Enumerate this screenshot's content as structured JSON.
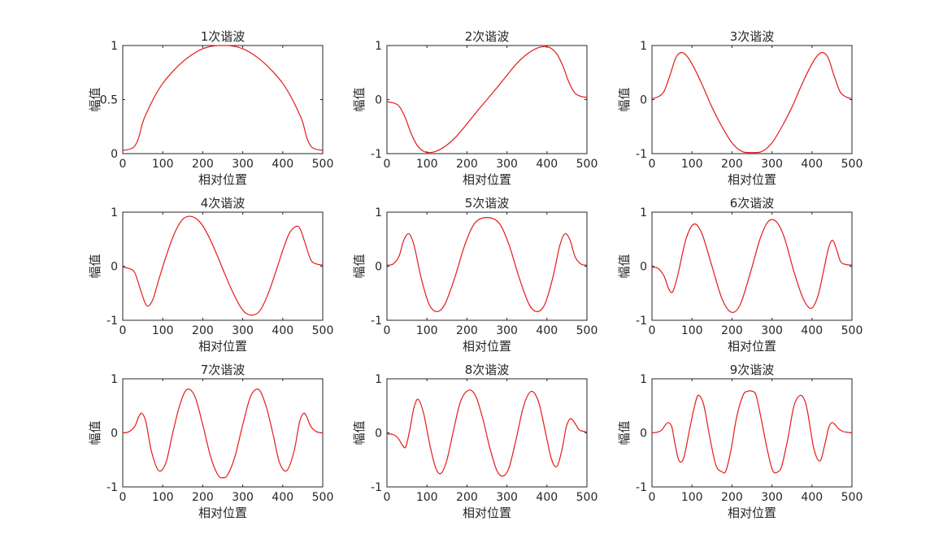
{
  "chart_data": [
    {
      "type": "line",
      "title": "1次谐波",
      "xlabel": "相对位置",
      "ylabel": "幅值",
      "xlim": [
        0,
        500
      ],
      "ylim": [
        0,
        1
      ],
      "xticks": [
        0,
        100,
        200,
        300,
        400,
        500
      ],
      "yticks": [
        0,
        0.5,
        1
      ],
      "grid": false,
      "series": [
        {
          "color": "#e41a1a",
          "x": [
            0,
            10,
            20,
            30,
            40,
            50,
            60,
            80,
            100,
            125,
            150,
            175,
            200,
            225,
            250,
            275,
            300,
            325,
            350,
            375,
            400,
            420,
            440,
            450,
            460,
            470,
            480,
            490,
            500
          ],
          "y": [
            0.03,
            0.035,
            0.045,
            0.07,
            0.15,
            0.29,
            0.38,
            0.53,
            0.65,
            0.76,
            0.85,
            0.92,
            0.97,
            0.995,
            1.0,
            0.995,
            0.97,
            0.92,
            0.85,
            0.76,
            0.65,
            0.53,
            0.38,
            0.29,
            0.15,
            0.07,
            0.045,
            0.035,
            0.03
          ]
        }
      ]
    },
    {
      "type": "line",
      "title": "2次谐波",
      "xlabel": "相对位置",
      "ylabel": "幅值",
      "xlim": [
        0,
        500
      ],
      "ylim": [
        -1,
        1
      ],
      "xticks": [
        0,
        100,
        200,
        300,
        400,
        500
      ],
      "yticks": [
        -1,
        0,
        1
      ],
      "grid": false,
      "series": [
        {
          "color": "#e41a1a",
          "x": [
            0,
            15,
            30,
            45,
            60,
            75,
            90,
            105,
            125,
            150,
            175,
            200,
            225,
            250,
            275,
            300,
            325,
            350,
            375,
            395,
            410,
            425,
            440,
            455,
            470,
            485,
            500
          ],
          "y": [
            -0.04,
            -0.06,
            -0.12,
            -0.32,
            -0.62,
            -0.84,
            -0.95,
            -0.98,
            -0.95,
            -0.84,
            -0.67,
            -0.45,
            -0.22,
            0.0,
            0.22,
            0.45,
            0.67,
            0.84,
            0.95,
            0.98,
            0.95,
            0.84,
            0.62,
            0.32,
            0.12,
            0.06,
            0.04
          ]
        }
      ]
    },
    {
      "type": "line",
      "title": "3次谐波",
      "xlabel": "相对位置",
      "ylabel": "幅值",
      "xlim": [
        0,
        500
      ],
      "ylim": [
        -1,
        1
      ],
      "xticks": [
        0,
        100,
        200,
        300,
        400,
        500
      ],
      "yticks": [
        -1,
        0,
        1
      ],
      "grid": false,
      "series": [
        {
          "color": "#e41a1a",
          "x": [
            0,
            15,
            30,
            45,
            60,
            75,
            90,
            110,
            130,
            150,
            175,
            200,
            225,
            250,
            275,
            300,
            325,
            350,
            370,
            390,
            410,
            425,
            440,
            455,
            470,
            485,
            500
          ],
          "y": [
            0.02,
            0.05,
            0.15,
            0.45,
            0.78,
            0.87,
            0.78,
            0.52,
            0.2,
            -0.14,
            -0.5,
            -0.8,
            -0.96,
            -0.98,
            -0.96,
            -0.8,
            -0.5,
            -0.14,
            0.2,
            0.52,
            0.78,
            0.87,
            0.78,
            0.45,
            0.15,
            0.05,
            0.02
          ]
        }
      ]
    },
    {
      "type": "line",
      "title": "4次谐波",
      "xlabel": "相对位置",
      "ylabel": "幅值",
      "xlim": [
        0,
        500
      ],
      "ylim": [
        -1,
        1
      ],
      "xticks": [
        0,
        100,
        200,
        300,
        400,
        500
      ],
      "yticks": [
        -1,
        0,
        1
      ],
      "grid": false,
      "series": [
        {
          "color": "#e41a1a",
          "x": [
            0,
            15,
            30,
            45,
            60,
            75,
            90,
            110,
            130,
            150,
            172,
            195,
            215,
            235,
            255,
            275,
            295,
            310,
            328,
            345,
            365,
            385,
            405,
            420,
            440,
            455,
            470,
            485,
            500
          ],
          "y": [
            -0.02,
            -0.04,
            -0.12,
            -0.45,
            -0.73,
            -0.62,
            -0.25,
            0.22,
            0.62,
            0.87,
            0.92,
            0.8,
            0.55,
            0.22,
            -0.14,
            -0.48,
            -0.76,
            -0.88,
            -0.9,
            -0.8,
            -0.48,
            -0.05,
            0.4,
            0.65,
            0.73,
            0.45,
            0.12,
            0.04,
            0.02
          ]
        }
      ]
    },
    {
      "type": "line",
      "title": "5次谐波",
      "xlabel": "相对位置",
      "ylabel": "幅值",
      "xlim": [
        0,
        500
      ],
      "ylim": [
        -1,
        1
      ],
      "xticks": [
        0,
        100,
        200,
        300,
        400,
        500
      ],
      "yticks": [
        -1,
        0,
        1
      ],
      "grid": false,
      "series": [
        {
          "color": "#e41a1a",
          "x": [
            0,
            15,
            30,
            42,
            55,
            68,
            85,
            105,
            125,
            145,
            170,
            195,
            220,
            250,
            280,
            305,
            330,
            355,
            375,
            395,
            415,
            432,
            445,
            458,
            470,
            485,
            500
          ],
          "y": [
            0.02,
            0.04,
            0.18,
            0.48,
            0.6,
            0.38,
            -0.2,
            -0.7,
            -0.84,
            -0.7,
            -0.2,
            0.4,
            0.8,
            0.9,
            0.8,
            0.4,
            -0.2,
            -0.7,
            -0.84,
            -0.7,
            -0.2,
            0.38,
            0.6,
            0.48,
            0.18,
            0.04,
            0.02
          ]
        }
      ]
    },
    {
      "type": "line",
      "title": "6次谐波",
      "xlabel": "相对位置",
      "ylabel": "幅值",
      "xlim": [
        0,
        500
      ],
      "ylim": [
        -1,
        1
      ],
      "xticks": [
        0,
        100,
        200,
        300,
        400,
        500
      ],
      "yticks": [
        -1,
        0,
        1
      ],
      "grid": false,
      "series": [
        {
          "color": "#e41a1a",
          "x": [
            0,
            15,
            30,
            42,
            52,
            65,
            85,
            105,
            125,
            150,
            175,
            198,
            220,
            245,
            270,
            290,
            310,
            330,
            355,
            378,
            398,
            415,
            430,
            442,
            452,
            462,
            472,
            486,
            500
          ],
          "y": [
            -0.02,
            -0.04,
            -0.18,
            -0.42,
            -0.47,
            -0.15,
            0.5,
            0.78,
            0.6,
            0.0,
            -0.6,
            -0.85,
            -0.72,
            -0.15,
            0.5,
            0.82,
            0.83,
            0.55,
            -0.1,
            -0.6,
            -0.78,
            -0.55,
            -0.05,
            0.35,
            0.48,
            0.3,
            0.08,
            0.03,
            0.02
          ]
        }
      ]
    },
    {
      "type": "line",
      "title": "7次谐波",
      "xlabel": "相对位置",
      "ylabel": "幅值",
      "xlim": [
        0,
        500
      ],
      "ylim": [
        -1,
        1
      ],
      "xticks": [
        0,
        100,
        200,
        300,
        400,
        500
      ],
      "yticks": [
        -1,
        0,
        1
      ],
      "grid": false,
      "series": [
        {
          "color": "#e41a1a",
          "x": [
            0,
            15,
            30,
            40,
            48,
            58,
            72,
            90,
            108,
            125,
            142,
            160,
            180,
            200,
            220,
            238,
            250,
            262,
            280,
            300,
            320,
            340,
            358,
            375,
            392,
            410,
            428,
            442,
            452,
            460,
            470,
            485,
            500
          ],
          "y": [
            0.0,
            0.02,
            0.12,
            0.3,
            0.36,
            0.2,
            -0.35,
            -0.7,
            -0.55,
            0.0,
            0.5,
            0.8,
            0.68,
            0.15,
            -0.45,
            -0.78,
            -0.83,
            -0.78,
            -0.45,
            0.15,
            0.68,
            0.8,
            0.5,
            0.0,
            -0.55,
            -0.7,
            -0.35,
            0.2,
            0.36,
            0.3,
            0.12,
            0.02,
            0.0
          ]
        }
      ]
    },
    {
      "type": "line",
      "title": "8次谐波",
      "xlabel": "相对位置",
      "ylabel": "幅值",
      "xlim": [
        0,
        500
      ],
      "ylim": [
        -1,
        1
      ],
      "xticks": [
        0,
        100,
        200,
        300,
        400,
        500
      ],
      "yticks": [
        -1,
        0,
        1
      ],
      "grid": false,
      "series": [
        {
          "color": "#e41a1a",
          "x": [
            0,
            15,
            28,
            38,
            47,
            57,
            67,
            78,
            92,
            108,
            122,
            135,
            150,
            168,
            185,
            205,
            222,
            240,
            258,
            275,
            290,
            305,
            322,
            340,
            355,
            368,
            382,
            398,
            412,
            425,
            438,
            448,
            458,
            468,
            480,
            490,
            500
          ],
          "y": [
            -0.02,
            -0.03,
            -0.1,
            -0.22,
            -0.26,
            0.05,
            0.45,
            0.62,
            0.35,
            -0.25,
            -0.65,
            -0.75,
            -0.5,
            0.1,
            0.6,
            0.79,
            0.68,
            0.25,
            -0.3,
            -0.7,
            -0.8,
            -0.65,
            -0.15,
            0.45,
            0.73,
            0.74,
            0.5,
            -0.05,
            -0.5,
            -0.62,
            -0.3,
            0.1,
            0.26,
            0.2,
            0.06,
            0.03,
            0.02
          ]
        }
      ]
    },
    {
      "type": "line",
      "title": "9次谐波",
      "xlabel": "相对位置",
      "ylabel": "幅值",
      "xlim": [
        0,
        500
      ],
      "ylim": [
        -1,
        1
      ],
      "xticks": [
        0,
        100,
        200,
        300,
        400,
        500
      ],
      "yticks": [
        -1,
        0,
        1
      ],
      "grid": false,
      "series": [
        {
          "color": "#e41a1a",
          "x": [
            0,
            12,
            24,
            34,
            42,
            50,
            58,
            68,
            80,
            95,
            110,
            118,
            130,
            145,
            160,
            175,
            185,
            198,
            212,
            228,
            240,
            250,
            260,
            272,
            288,
            302,
            315,
            325,
            340,
            355,
            370,
            382,
            390,
            405,
            420,
            432,
            442,
            450,
            458,
            466,
            476,
            488,
            500
          ],
          "y": [
            0.0,
            0.01,
            0.05,
            0.15,
            0.19,
            0.1,
            -0.22,
            -0.52,
            -0.45,
            0.1,
            0.6,
            0.69,
            0.5,
            -0.1,
            -0.6,
            -0.72,
            -0.7,
            -0.3,
            0.3,
            0.7,
            0.77,
            0.77,
            0.7,
            0.3,
            -0.3,
            -0.7,
            -0.72,
            -0.6,
            -0.1,
            0.5,
            0.69,
            0.6,
            0.35,
            -0.3,
            -0.52,
            -0.22,
            0.1,
            0.19,
            0.15,
            0.08,
            0.03,
            0.01,
            0.0
          ]
        }
      ]
    }
  ]
}
